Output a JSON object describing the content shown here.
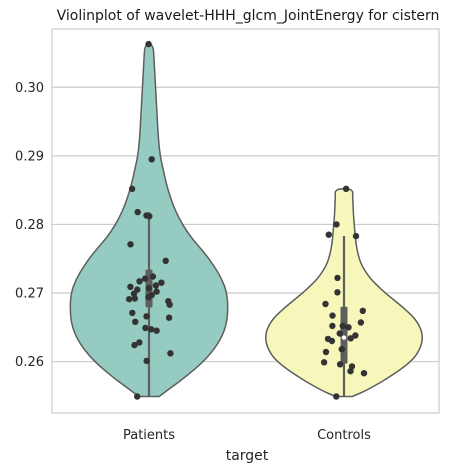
{
  "chart_data": {
    "type": "violin",
    "title": "Violinplot of wavelet-HHH_glcm_JointEnergy for cistern",
    "xlabel": "target",
    "ylabel": "",
    "categories": [
      "Patients",
      "Controls"
    ],
    "ylim": [
      0.2525,
      0.3085
    ],
    "yticks": [
      0.26,
      0.27,
      0.28,
      0.29,
      0.3
    ],
    "ytick_labels": [
      "0.26",
      "0.27",
      "0.28",
      "0.29",
      "0.30"
    ],
    "grid": "horizontal",
    "colors": {
      "Patients": "#96cbc1",
      "Controls": "#f7f7bb",
      "outline": "#5e5e5e",
      "points": "#333333",
      "grid": "#cccccc",
      "box": "#5e5e5e"
    },
    "series": [
      {
        "name": "Patients",
        "min": 0.2549,
        "max": 0.3063,
        "q1": 0.2679,
        "median": 0.2707,
        "q3": 0.2734,
        "whisker_high": 0.2818,
        "points": [
          0.3063,
          0.2895,
          0.2852,
          0.2818,
          0.2813,
          0.2812,
          0.2771,
          0.2747,
          0.2724,
          0.2721,
          0.2717,
          0.2715,
          0.2711,
          0.2709,
          0.2707,
          0.2705,
          0.2702,
          0.2699,
          0.2697,
          0.2694,
          0.2692,
          0.2691,
          0.2688,
          0.2683,
          0.2671,
          0.2666,
          0.2664,
          0.2658,
          0.2649,
          0.2647,
          0.2645,
          0.2628,
          0.2624,
          0.2612,
          0.2601,
          0.2549
        ],
        "profile": [
          [
            0.2549,
            10
          ],
          [
            0.2558,
            18
          ],
          [
            0.2575,
            34
          ],
          [
            0.26,
            54
          ],
          [
            0.2625,
            68
          ],
          [
            0.265,
            76
          ],
          [
            0.2675,
            78
          ],
          [
            0.27,
            77
          ],
          [
            0.272,
            72
          ],
          [
            0.274,
            64
          ],
          [
            0.276,
            54
          ],
          [
            0.278,
            42
          ],
          [
            0.28,
            33
          ],
          [
            0.282,
            26
          ],
          [
            0.284,
            21
          ],
          [
            0.286,
            17
          ],
          [
            0.288,
            14
          ],
          [
            0.29,
            11
          ],
          [
            0.293,
            9
          ],
          [
            0.296,
            8
          ],
          [
            0.3,
            6.5
          ],
          [
            0.304,
            5
          ],
          [
            0.3063,
            4
          ]
        ]
      },
      {
        "name": "Controls",
        "min": 0.2549,
        "max": 0.2852,
        "q1": 0.2597,
        "median": 0.2635,
        "q3": 0.268,
        "whisker_high": 0.2783,
        "points": [
          0.2852,
          0.28,
          0.2785,
          0.2783,
          0.2722,
          0.2701,
          0.2684,
          0.2674,
          0.2667,
          0.2657,
          0.2652,
          0.2652,
          0.265,
          0.2641,
          0.2638,
          0.2634,
          0.2633,
          0.263,
          0.2618,
          0.2614,
          0.2599,
          0.2596,
          0.2593,
          0.2586,
          0.2583,
          0.2549
        ],
        "profile": [
          [
            0.2549,
            8
          ],
          [
            0.2558,
            22
          ],
          [
            0.2575,
            42
          ],
          [
            0.26,
            66
          ],
          [
            0.262,
            75
          ],
          [
            0.264,
            77
          ],
          [
            0.266,
            71
          ],
          [
            0.268,
            57
          ],
          [
            0.27,
            40
          ],
          [
            0.272,
            26
          ],
          [
            0.274,
            17
          ],
          [
            0.276,
            13
          ],
          [
            0.278,
            11
          ],
          [
            0.28,
            10
          ],
          [
            0.282,
            9
          ],
          [
            0.284,
            8.5
          ],
          [
            0.2852,
            8.5
          ]
        ]
      }
    ]
  }
}
